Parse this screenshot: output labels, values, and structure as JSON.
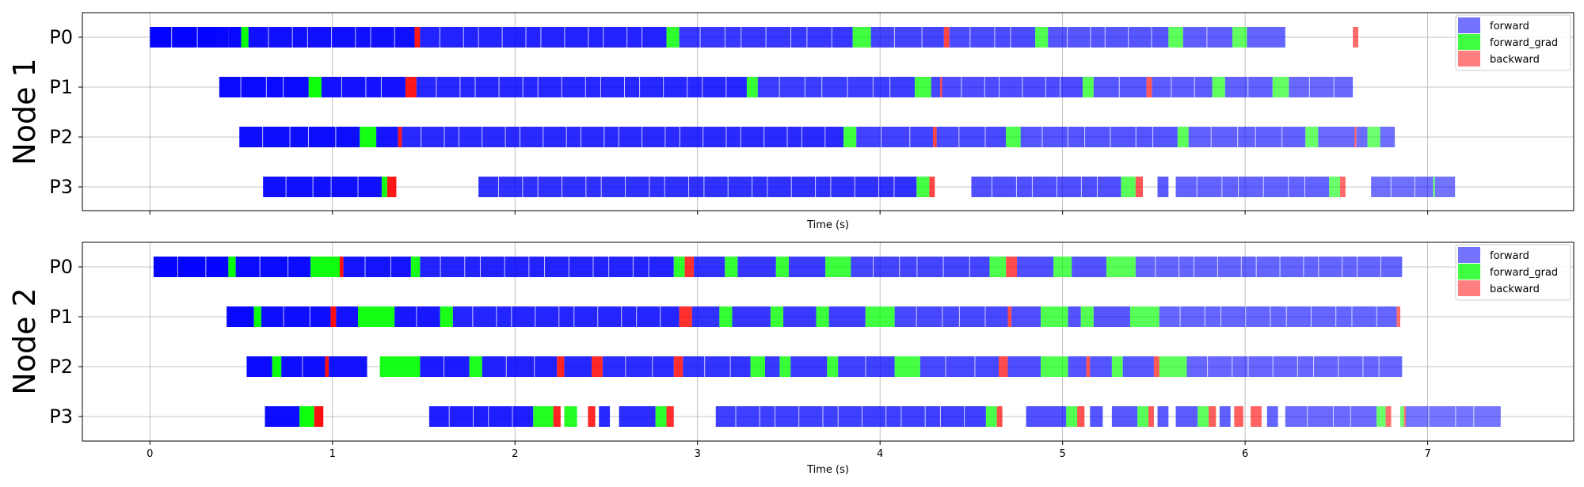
{
  "chart_data": [
    {
      "type": "bar",
      "subtype": "gantt-timeline",
      "panel_label": "Node 1",
      "xlabel": "Time (s)",
      "xlim": [
        -0.37,
        7.8
      ],
      "xticks": [
        0,
        1,
        2,
        3,
        4,
        5,
        6,
        7
      ],
      "show_xtick_labels": false,
      "rows": [
        "P0",
        "P1",
        "P2",
        "P3"
      ],
      "grid": true,
      "legend": {
        "placement": "top-right",
        "entries": [
          "forward",
          "forward_grad",
          "backward"
        ]
      },
      "colors": {
        "forward": "#0000ff",
        "forward_grad": "#00ff00",
        "backward": "#ff0000"
      },
      "fade_to_alpha": 0.5,
      "segments": {
        "P0": [
          [
            0.0,
            0.37,
            "forward"
          ],
          [
            0.37,
            0.43,
            "forward"
          ],
          [
            0.43,
            0.5,
            "forward"
          ],
          [
            0.5,
            0.54,
            "forward_grad"
          ],
          [
            0.54,
            1.45,
            "forward"
          ],
          [
            1.45,
            1.48,
            "backward"
          ],
          [
            1.48,
            2.83,
            "forward"
          ],
          [
            2.83,
            2.9,
            "forward_grad"
          ],
          [
            2.9,
            3.85,
            "forward"
          ],
          [
            3.85,
            3.95,
            "forward_grad"
          ],
          [
            3.95,
            4.35,
            "forward"
          ],
          [
            4.35,
            4.38,
            "backward"
          ],
          [
            4.38,
            4.85,
            "forward"
          ],
          [
            4.85,
            4.92,
            "forward_grad"
          ],
          [
            4.92,
            5.58,
            "forward"
          ],
          [
            5.58,
            5.66,
            "forward_grad"
          ],
          [
            5.66,
            5.93,
            "forward"
          ],
          [
            5.93,
            6.01,
            "forward_grad"
          ],
          [
            6.01,
            6.22,
            "forward"
          ],
          [
            6.59,
            6.62,
            "backward"
          ]
        ],
        "P1": [
          [
            0.38,
            0.87,
            "forward"
          ],
          [
            0.87,
            0.94,
            "forward_grad"
          ],
          [
            0.94,
            1.4,
            "forward"
          ],
          [
            1.4,
            1.46,
            "backward"
          ],
          [
            1.46,
            3.27,
            "forward"
          ],
          [
            3.27,
            3.33,
            "forward_grad"
          ],
          [
            3.33,
            4.19,
            "forward"
          ],
          [
            4.19,
            4.28,
            "forward_grad"
          ],
          [
            4.28,
            4.33,
            "forward"
          ],
          [
            4.33,
            4.34,
            "backward"
          ],
          [
            4.34,
            5.11,
            "forward"
          ],
          [
            5.11,
            5.17,
            "forward_grad"
          ],
          [
            5.17,
            5.46,
            "forward"
          ],
          [
            5.46,
            5.49,
            "backward"
          ],
          [
            5.49,
            5.82,
            "forward"
          ],
          [
            5.82,
            5.89,
            "forward_grad"
          ],
          [
            5.89,
            6.15,
            "forward"
          ],
          [
            6.15,
            6.24,
            "forward_grad"
          ],
          [
            6.24,
            6.59,
            "forward"
          ]
        ],
        "P2": [
          [
            0.49,
            1.15,
            "forward"
          ],
          [
            1.15,
            1.24,
            "forward_grad"
          ],
          [
            1.24,
            1.36,
            "forward"
          ],
          [
            1.36,
            1.38,
            "backward"
          ],
          [
            1.38,
            3.8,
            "forward"
          ],
          [
            3.8,
            3.87,
            "forward_grad"
          ],
          [
            3.87,
            4.29,
            "forward"
          ],
          [
            4.29,
            4.31,
            "backward"
          ],
          [
            4.31,
            4.69,
            "forward"
          ],
          [
            4.69,
            4.77,
            "forward_grad"
          ],
          [
            4.77,
            5.63,
            "forward"
          ],
          [
            5.63,
            5.69,
            "forward_grad"
          ],
          [
            5.69,
            6.33,
            "forward"
          ],
          [
            6.33,
            6.4,
            "forward_grad"
          ],
          [
            6.4,
            6.6,
            "forward"
          ],
          [
            6.6,
            6.61,
            "backward"
          ],
          [
            6.61,
            6.67,
            "forward"
          ],
          [
            6.67,
            6.74,
            "forward_grad"
          ],
          [
            6.74,
            6.82,
            "forward"
          ]
        ],
        "P3": [
          [
            0.62,
            1.27,
            "forward"
          ],
          [
            1.27,
            1.3,
            "forward_grad"
          ],
          [
            1.3,
            1.35,
            "backward"
          ],
          [
            1.8,
            4.2,
            "forward"
          ],
          [
            4.2,
            4.27,
            "forward_grad"
          ],
          [
            4.27,
            4.3,
            "backward"
          ],
          [
            4.5,
            5.32,
            "forward"
          ],
          [
            5.32,
            5.4,
            "forward_grad"
          ],
          [
            5.4,
            5.44,
            "backward"
          ],
          [
            5.52,
            5.58,
            "forward"
          ],
          [
            5.62,
            6.46,
            "forward"
          ],
          [
            6.46,
            6.52,
            "forward_grad"
          ],
          [
            6.52,
            6.55,
            "backward"
          ],
          [
            6.69,
            7.03,
            "forward"
          ],
          [
            7.03,
            7.04,
            "forward_grad"
          ],
          [
            7.04,
            7.15,
            "forward"
          ]
        ]
      }
    },
    {
      "type": "bar",
      "subtype": "gantt-timeline",
      "panel_label": "Node 2",
      "xlabel": "Time (s)",
      "xlim": [
        -0.37,
        7.8
      ],
      "xticks": [
        0,
        1,
        2,
        3,
        4,
        5,
        6,
        7
      ],
      "show_xtick_labels": true,
      "rows": [
        "P0",
        "P1",
        "P2",
        "P3"
      ],
      "grid": true,
      "legend": {
        "placement": "top-right",
        "entries": [
          "forward",
          "forward_grad",
          "backward"
        ]
      },
      "colors": {
        "forward": "#0000ff",
        "forward_grad": "#00ff00",
        "backward": "#ff0000"
      },
      "fade_to_alpha": 0.5,
      "segments": {
        "P0": [
          [
            0.02,
            0.43,
            "forward"
          ],
          [
            0.43,
            0.47,
            "forward_grad"
          ],
          [
            0.47,
            0.88,
            "forward"
          ],
          [
            0.88,
            1.04,
            "forward_grad"
          ],
          [
            1.04,
            1.06,
            "backward"
          ],
          [
            1.06,
            1.43,
            "forward"
          ],
          [
            1.43,
            1.48,
            "forward_grad"
          ],
          [
            1.48,
            2.87,
            "forward"
          ],
          [
            2.87,
            2.93,
            "forward_grad"
          ],
          [
            2.93,
            2.98,
            "backward"
          ],
          [
            2.98,
            3.15,
            "forward"
          ],
          [
            3.15,
            3.22,
            "forward_grad"
          ],
          [
            3.22,
            3.43,
            "forward"
          ],
          [
            3.43,
            3.5,
            "forward_grad"
          ],
          [
            3.5,
            3.7,
            "forward"
          ],
          [
            3.7,
            3.84,
            "forward_grad"
          ],
          [
            3.84,
            4.6,
            "forward"
          ],
          [
            4.6,
            4.69,
            "forward_grad"
          ],
          [
            4.69,
            4.75,
            "backward"
          ],
          [
            4.75,
            4.95,
            "forward"
          ],
          [
            4.95,
            5.05,
            "forward_grad"
          ],
          [
            5.05,
            5.24,
            "forward"
          ],
          [
            5.24,
            5.4,
            "forward_grad"
          ],
          [
            5.4,
            6.86,
            "forward"
          ]
        ],
        "P1": [
          [
            0.42,
            0.57,
            "forward"
          ],
          [
            0.57,
            0.61,
            "forward_grad"
          ],
          [
            0.61,
            0.99,
            "forward"
          ],
          [
            0.99,
            1.02,
            "backward"
          ],
          [
            1.02,
            1.14,
            "forward"
          ],
          [
            1.14,
            1.34,
            "forward_grad"
          ],
          [
            1.34,
            1.59,
            "forward"
          ],
          [
            1.59,
            1.66,
            "forward_grad"
          ],
          [
            1.66,
            2.9,
            "forward"
          ],
          [
            2.9,
            2.97,
            "backward"
          ],
          [
            2.97,
            3.12,
            "forward"
          ],
          [
            3.12,
            3.19,
            "forward_grad"
          ],
          [
            3.19,
            3.4,
            "forward"
          ],
          [
            3.4,
            3.47,
            "forward_grad"
          ],
          [
            3.47,
            3.65,
            "forward"
          ],
          [
            3.65,
            3.72,
            "forward_grad"
          ],
          [
            3.72,
            3.92,
            "forward"
          ],
          [
            3.92,
            4.08,
            "forward_grad"
          ],
          [
            4.08,
            4.7,
            "forward"
          ],
          [
            4.7,
            4.72,
            "backward"
          ],
          [
            4.72,
            4.88,
            "forward"
          ],
          [
            4.88,
            5.03,
            "forward_grad"
          ],
          [
            5.03,
            5.1,
            "forward"
          ],
          [
            5.1,
            5.17,
            "forward_grad"
          ],
          [
            5.17,
            5.37,
            "forward"
          ],
          [
            5.37,
            5.53,
            "forward_grad"
          ],
          [
            5.53,
            6.83,
            "forward"
          ],
          [
            6.83,
            6.85,
            "backward"
          ]
        ],
        "P2": [
          [
            0.53,
            0.67,
            "forward"
          ],
          [
            0.67,
            0.72,
            "forward_grad"
          ],
          [
            0.72,
            0.96,
            "forward"
          ],
          [
            0.96,
            0.98,
            "backward"
          ],
          [
            0.98,
            1.19,
            "forward"
          ],
          [
            1.26,
            1.48,
            "forward_grad"
          ],
          [
            1.48,
            1.75,
            "forward"
          ],
          [
            1.75,
            1.82,
            "forward_grad"
          ],
          [
            1.82,
            2.23,
            "forward"
          ],
          [
            2.23,
            2.27,
            "backward"
          ],
          [
            2.27,
            2.42,
            "forward"
          ],
          [
            2.42,
            2.48,
            "backward"
          ],
          [
            2.48,
            2.87,
            "forward"
          ],
          [
            2.87,
            2.92,
            "backward"
          ],
          [
            2.92,
            3.29,
            "forward"
          ],
          [
            3.29,
            3.37,
            "forward_grad"
          ],
          [
            3.37,
            3.45,
            "forward"
          ],
          [
            3.45,
            3.51,
            "forward_grad"
          ],
          [
            3.51,
            3.71,
            "forward"
          ],
          [
            3.71,
            3.77,
            "forward_grad"
          ],
          [
            3.77,
            4.08,
            "forward"
          ],
          [
            4.08,
            4.22,
            "forward_grad"
          ],
          [
            4.22,
            4.65,
            "forward"
          ],
          [
            4.65,
            4.7,
            "backward"
          ],
          [
            4.7,
            4.88,
            "forward"
          ],
          [
            4.88,
            5.03,
            "forward_grad"
          ],
          [
            5.03,
            5.13,
            "forward"
          ],
          [
            5.13,
            5.15,
            "backward"
          ],
          [
            5.15,
            5.27,
            "forward"
          ],
          [
            5.27,
            5.33,
            "forward_grad"
          ],
          [
            5.33,
            5.5,
            "forward"
          ],
          [
            5.5,
            5.53,
            "backward"
          ],
          [
            5.53,
            5.68,
            "forward_grad"
          ],
          [
            5.68,
            6.86,
            "forward"
          ]
        ],
        "P3": [
          [
            0.63,
            0.82,
            "forward"
          ],
          [
            0.82,
            0.9,
            "forward_grad"
          ],
          [
            0.9,
            0.95,
            "backward"
          ],
          [
            1.53,
            2.1,
            "forward"
          ],
          [
            2.1,
            2.14,
            "forward_grad"
          ],
          [
            2.14,
            2.21,
            "forward_grad"
          ],
          [
            2.21,
            2.25,
            "backward"
          ],
          [
            2.27,
            2.34,
            "forward_grad"
          ],
          [
            2.4,
            2.44,
            "backward"
          ],
          [
            2.46,
            2.52,
            "forward"
          ],
          [
            2.57,
            2.77,
            "forward"
          ],
          [
            2.77,
            2.83,
            "forward_grad"
          ],
          [
            2.83,
            2.87,
            "backward"
          ],
          [
            3.1,
            4.58,
            "forward"
          ],
          [
            4.58,
            4.64,
            "forward_grad"
          ],
          [
            4.64,
            4.67,
            "backward"
          ],
          [
            4.8,
            5.02,
            "forward"
          ],
          [
            5.02,
            5.08,
            "forward_grad"
          ],
          [
            5.08,
            5.12,
            "backward"
          ],
          [
            5.15,
            5.22,
            "forward"
          ],
          [
            5.27,
            5.41,
            "forward"
          ],
          [
            5.41,
            5.47,
            "forward_grad"
          ],
          [
            5.47,
            5.5,
            "backward"
          ],
          [
            5.52,
            5.58,
            "forward"
          ],
          [
            5.62,
            5.74,
            "forward"
          ],
          [
            5.74,
            5.8,
            "forward_grad"
          ],
          [
            5.8,
            5.84,
            "backward"
          ],
          [
            5.86,
            5.92,
            "forward"
          ],
          [
            5.94,
            5.99,
            "backward"
          ],
          [
            6.03,
            6.09,
            "backward"
          ],
          [
            6.12,
            6.18,
            "forward"
          ],
          [
            6.22,
            6.72,
            "forward"
          ],
          [
            6.72,
            6.77,
            "forward_grad"
          ],
          [
            6.77,
            6.8,
            "backward"
          ],
          [
            6.85,
            6.87,
            "forward_grad"
          ],
          [
            6.87,
            6.88,
            "backward"
          ],
          [
            6.88,
            7.4,
            "forward"
          ]
        ]
      }
    }
  ]
}
